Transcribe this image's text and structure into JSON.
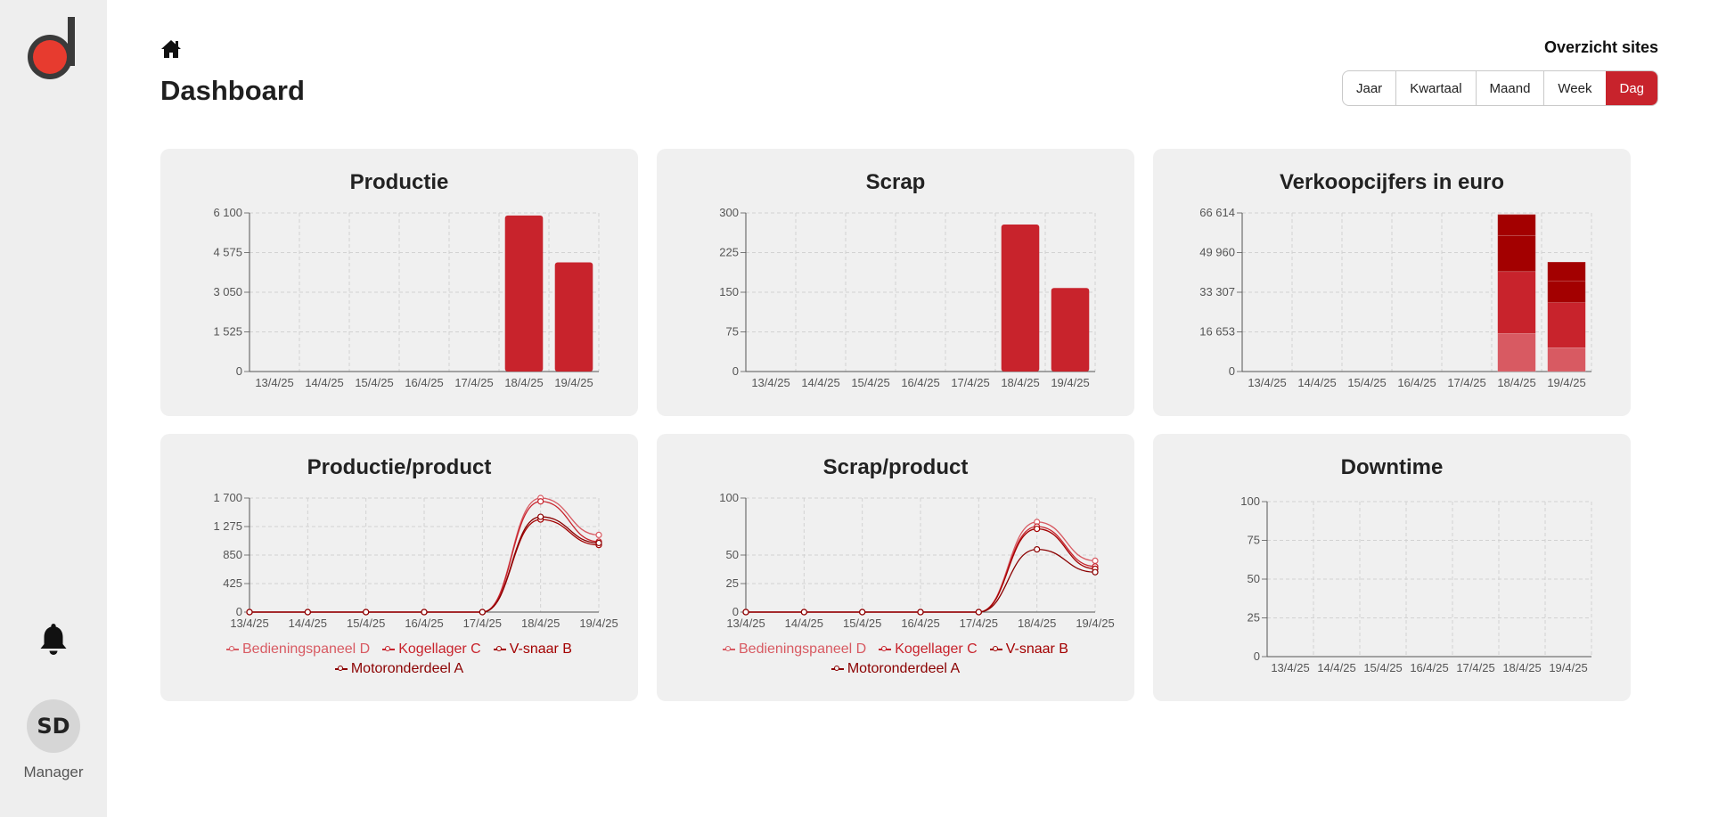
{
  "sidebar": {
    "user_initials": "SD",
    "user_role": "Manager"
  },
  "header": {
    "title": "Dashboard",
    "sites_link": "Overzicht sites"
  },
  "period_buttons": [
    "Jaar",
    "Kwartaal",
    "Maand",
    "Week",
    "Dag"
  ],
  "period_active": "Dag",
  "colors": {
    "accent": "#c8232c",
    "dark_red": "#a30000",
    "light_red": "#d85a62",
    "card_bg": "#f0f0f0"
  },
  "icons": {
    "logo": "d-logo-icon",
    "home": "home-icon",
    "notifications": "bell-icon"
  },
  "cards": [
    {
      "title": "Productie"
    },
    {
      "title": "Scrap"
    },
    {
      "title": "Verkoopcijfers in euro"
    },
    {
      "title": "Productie/product"
    },
    {
      "title": "Scrap/product"
    },
    {
      "title": "Downtime"
    }
  ],
  "chart_data": [
    {
      "type": "bar",
      "title": "Productie",
      "categories": [
        "13/4/25",
        "14/4/25",
        "15/4/25",
        "16/4/25",
        "17/4/25",
        "18/4/25",
        "19/4/25"
      ],
      "values": [
        0,
        0,
        0,
        0,
        0,
        6000,
        4200
      ],
      "ylim": [
        0,
        6100
      ],
      "yticks": [
        "0",
        "1 525",
        "3 050",
        "4 575",
        "6 100"
      ],
      "grid": true
    },
    {
      "type": "bar",
      "title": "Scrap",
      "categories": [
        "13/4/25",
        "14/4/25",
        "15/4/25",
        "16/4/25",
        "17/4/25",
        "18/4/25",
        "19/4/25"
      ],
      "values": [
        0,
        0,
        0,
        0,
        0,
        278,
        158
      ],
      "ylim": [
        0,
        300
      ],
      "yticks": [
        "0",
        "75",
        "150",
        "225",
        "300"
      ],
      "grid": true
    },
    {
      "type": "bar",
      "title": "Verkoopcijfers in euro",
      "stacked": true,
      "categories": [
        "13/4/25",
        "14/4/25",
        "15/4/25",
        "16/4/25",
        "17/4/25",
        "18/4/25",
        "19/4/25"
      ],
      "series": [
        {
          "values": [
            0,
            0,
            0,
            0,
            0,
            16000,
            10000
          ],
          "color": "#d85a62"
        },
        {
          "values": [
            0,
            0,
            0,
            0,
            0,
            26000,
            19000
          ],
          "color": "#c8232c"
        },
        {
          "values": [
            0,
            0,
            0,
            0,
            0,
            15000,
            9000
          ],
          "color": "#a30000"
        },
        {
          "values": [
            0,
            0,
            0,
            0,
            0,
            9000,
            8000
          ],
          "color": "#a30000"
        }
      ],
      "ylim": [
        0,
        66614
      ],
      "yticks": [
        "0",
        "16 653",
        "33 307",
        "49 960",
        "66 614"
      ],
      "grid": true
    },
    {
      "type": "line",
      "title": "Productie/product",
      "x": [
        "13/4/25",
        "14/4/25",
        "15/4/25",
        "16/4/25",
        "17/4/25",
        "18/4/25",
        "19/4/25"
      ],
      "series": [
        {
          "name": "Bedieningspaneel D",
          "values": [
            0,
            0,
            0,
            0,
            0,
            1700,
            1150
          ],
          "color": "#d85a62"
        },
        {
          "name": "Kogellager C",
          "values": [
            0,
            0,
            0,
            0,
            0,
            1650,
            1050
          ],
          "color": "#c8232c"
        },
        {
          "name": "V-snaar B",
          "values": [
            0,
            0,
            0,
            0,
            0,
            1380,
            1000
          ],
          "color": "#a30000"
        },
        {
          "name": "Motoronderdeel A",
          "values": [
            0,
            0,
            0,
            0,
            0,
            1420,
            1030
          ],
          "color": "#8b0000"
        }
      ],
      "ylim": [
        0,
        1700
      ],
      "yticks": [
        "0",
        "425",
        "850",
        "1 275",
        "1 700"
      ],
      "grid": true
    },
    {
      "type": "line",
      "title": "Scrap/product",
      "x": [
        "13/4/25",
        "14/4/25",
        "15/4/25",
        "16/4/25",
        "17/4/25",
        "18/4/25",
        "19/4/25"
      ],
      "series": [
        {
          "name": "Bedieningspaneel D",
          "values": [
            0,
            0,
            0,
            0,
            0,
            79,
            45
          ],
          "color": "#d85a62"
        },
        {
          "name": "Kogellager C",
          "values": [
            0,
            0,
            0,
            0,
            0,
            75,
            40
          ],
          "color": "#c8232c"
        },
        {
          "name": "V-snaar B",
          "values": [
            0,
            0,
            0,
            0,
            0,
            73,
            38
          ],
          "color": "#a30000"
        },
        {
          "name": "Motoronderdeel A",
          "values": [
            0,
            0,
            0,
            0,
            0,
            55,
            35
          ],
          "color": "#8b0000"
        }
      ],
      "ylim": [
        0,
        100
      ],
      "yticks": [
        "0",
        "25",
        "50",
        "100"
      ],
      "grid": true
    },
    {
      "type": "line",
      "title": "Downtime",
      "x": [
        "13/4/25",
        "14/4/25",
        "15/4/25",
        "16/4/25",
        "17/4/25",
        "18/4/25",
        "19/4/25"
      ],
      "series": [],
      "ylim": [
        0,
        100
      ],
      "yticks": [
        "0",
        "25",
        "50",
        "75",
        "100"
      ],
      "grid": true
    }
  ]
}
